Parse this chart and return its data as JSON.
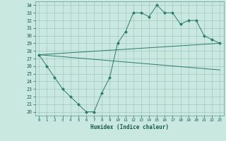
{
  "xlabel": "Humidex (Indice chaleur)",
  "ylim": [
    19.5,
    34.5
  ],
  "xlim": [
    -0.5,
    23.5
  ],
  "yticks": [
    20,
    21,
    22,
    23,
    24,
    25,
    26,
    27,
    28,
    29,
    30,
    31,
    32,
    33,
    34
  ],
  "xticks": [
    0,
    1,
    2,
    3,
    4,
    5,
    6,
    7,
    8,
    9,
    10,
    11,
    12,
    13,
    14,
    15,
    16,
    17,
    18,
    19,
    20,
    21,
    22,
    23
  ],
  "bg_color": "#c8e8e0",
  "line_color": "#2d7a6e",
  "grid_color": "#9dbfb8",
  "main_x": [
    0,
    1,
    2,
    3,
    4,
    5,
    6,
    7,
    8,
    9,
    10,
    11,
    12,
    13,
    14,
    15,
    16,
    17,
    18,
    19,
    20,
    21,
    22,
    23
  ],
  "main_y": [
    27.5,
    26.0,
    24.5,
    23.0,
    22.0,
    21.0,
    20.0,
    20.0,
    22.5,
    24.5,
    29.0,
    30.5,
    33.0,
    33.0,
    32.5,
    34.0,
    33.0,
    33.0,
    31.5,
    32.0,
    32.0,
    30.0,
    29.5,
    29.0
  ],
  "trend1_x": [
    0,
    23
  ],
  "trend1_y": [
    27.5,
    29.0
  ],
  "trend2_x": [
    0,
    23
  ],
  "trend2_y": [
    27.5,
    25.5
  ],
  "marker_size": 2.5
}
